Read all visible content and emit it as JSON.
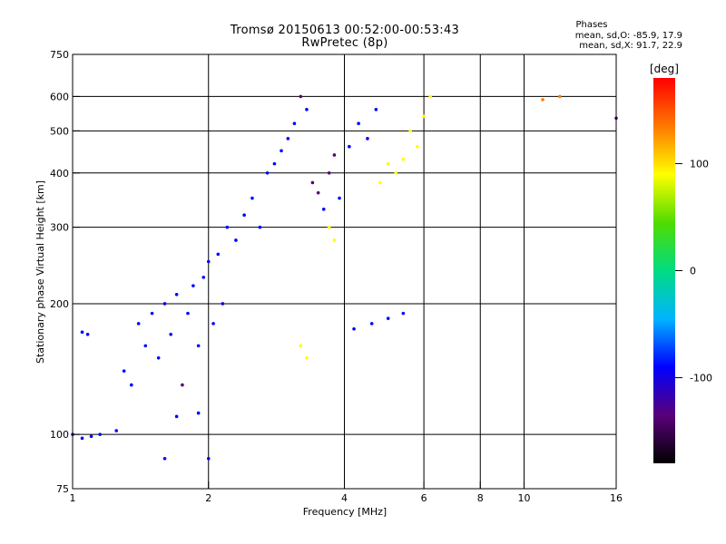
{
  "title_line1": "Tromsø 20150613 00:52:00-00:53:43",
  "title_line2": "RwPretec (8p)",
  "phases": {
    "heading": "Phases",
    "line_o": "mean, sd,O: -85.9, 17.9",
    "line_x": "mean, sd,X: 91.7, 22.9"
  },
  "chart_data": {
    "type": "scatter",
    "xlabel": "Frequency [MHz]",
    "ylabel": "Stationary phase Virtual Height [km]",
    "x_scale": "log",
    "y_scale": "log",
    "xlim": [
      1,
      16
    ],
    "ylim": [
      75,
      750
    ],
    "x_ticks": [
      1,
      2,
      4,
      6,
      8,
      10,
      16
    ],
    "y_ticks": [
      75,
      100,
      200,
      300,
      400,
      500,
      600,
      750
    ],
    "x_grid": [
      2,
      4,
      6,
      8,
      10
    ],
    "y_grid": [
      100,
      200,
      300,
      400,
      500,
      600
    ],
    "colorbar": {
      "label": "[deg]",
      "range": [
        -180,
        180
      ],
      "ticks": [
        100,
        0,
        -100
      ],
      "colormap": [
        "#000000",
        "#5a007a",
        "#0000ff",
        "#00b4ff",
        "#00dc82",
        "#50dc00",
        "#ffff00",
        "#ff7800",
        "#ff0000"
      ]
    },
    "series": [
      {
        "values": [
          [
            1.0,
            100,
            -100
          ],
          [
            1.05,
            98,
            -110
          ],
          [
            1.1,
            99,
            -105
          ],
          [
            1.15,
            100,
            -95
          ],
          [
            1.05,
            172,
            -110
          ],
          [
            1.08,
            170,
            -100
          ],
          [
            1.25,
            102,
            -80
          ],
          [
            1.3,
            140,
            -100
          ],
          [
            1.35,
            130,
            -95
          ],
          [
            1.4,
            180,
            -110
          ],
          [
            1.45,
            160,
            -100
          ],
          [
            1.5,
            190,
            -90
          ],
          [
            1.55,
            150,
            -105
          ],
          [
            1.6,
            200,
            -110
          ],
          [
            1.65,
            170,
            -95
          ],
          [
            1.7,
            210,
            -100
          ],
          [
            1.75,
            130,
            -115
          ],
          [
            1.8,
            190,
            -85
          ],
          [
            1.85,
            220,
            -100
          ],
          [
            1.9,
            160,
            -95
          ],
          [
            1.95,
            230,
            -105
          ],
          [
            2.0,
            250,
            -90
          ],
          [
            2.05,
            180,
            -100
          ],
          [
            2.1,
            260,
            -80
          ],
          [
            2.15,
            200,
            -95
          ],
          [
            2.2,
            300,
            -100
          ],
          [
            2.3,
            280,
            -90
          ],
          [
            2.4,
            320,
            -95
          ],
          [
            2.5,
            350,
            -85
          ],
          [
            2.6,
            300,
            -70
          ],
          [
            2.7,
            400,
            -75
          ],
          [
            2.8,
            420,
            -70
          ],
          [
            2.9,
            450,
            -75
          ],
          [
            3.0,
            480,
            -110
          ],
          [
            3.1,
            520,
            -105
          ],
          [
            3.2,
            600,
            -115
          ],
          [
            3.3,
            560,
            -110
          ],
          [
            3.4,
            380,
            -120
          ],
          [
            3.5,
            360,
            -115
          ],
          [
            3.6,
            330,
            -110
          ],
          [
            3.7,
            400,
            -120
          ],
          [
            3.8,
            440,
            -115
          ],
          [
            3.9,
            350,
            -110
          ],
          [
            4.1,
            460,
            -105
          ],
          [
            4.3,
            520,
            -110
          ],
          [
            4.5,
            480,
            -100
          ],
          [
            4.7,
            560,
            -100
          ],
          [
            4.8,
            380,
            100
          ],
          [
            5.0,
            420,
            110
          ],
          [
            5.2,
            400,
            105
          ],
          [
            5.4,
            430,
            100
          ],
          [
            5.6,
            500,
            105
          ],
          [
            5.8,
            460,
            110
          ],
          [
            6.0,
            540,
            100
          ],
          [
            6.2,
            600,
            110
          ],
          [
            3.2,
            160,
            110
          ],
          [
            3.3,
            150,
            100
          ],
          [
            3.7,
            300,
            100
          ],
          [
            3.8,
            280,
            105
          ],
          [
            4.2,
            175,
            -100
          ],
          [
            4.6,
            180,
            -95
          ],
          [
            5.0,
            185,
            -100
          ],
          [
            5.4,
            190,
            -90
          ],
          [
            1.7,
            110,
            -100
          ],
          [
            1.9,
            112,
            -95
          ],
          [
            1.6,
            88,
            -100
          ],
          [
            2.0,
            88,
            -95
          ],
          [
            11.0,
            590,
            150
          ],
          [
            12.0,
            600,
            150
          ],
          [
            16.0,
            535,
            -130
          ]
        ]
      }
    ]
  }
}
